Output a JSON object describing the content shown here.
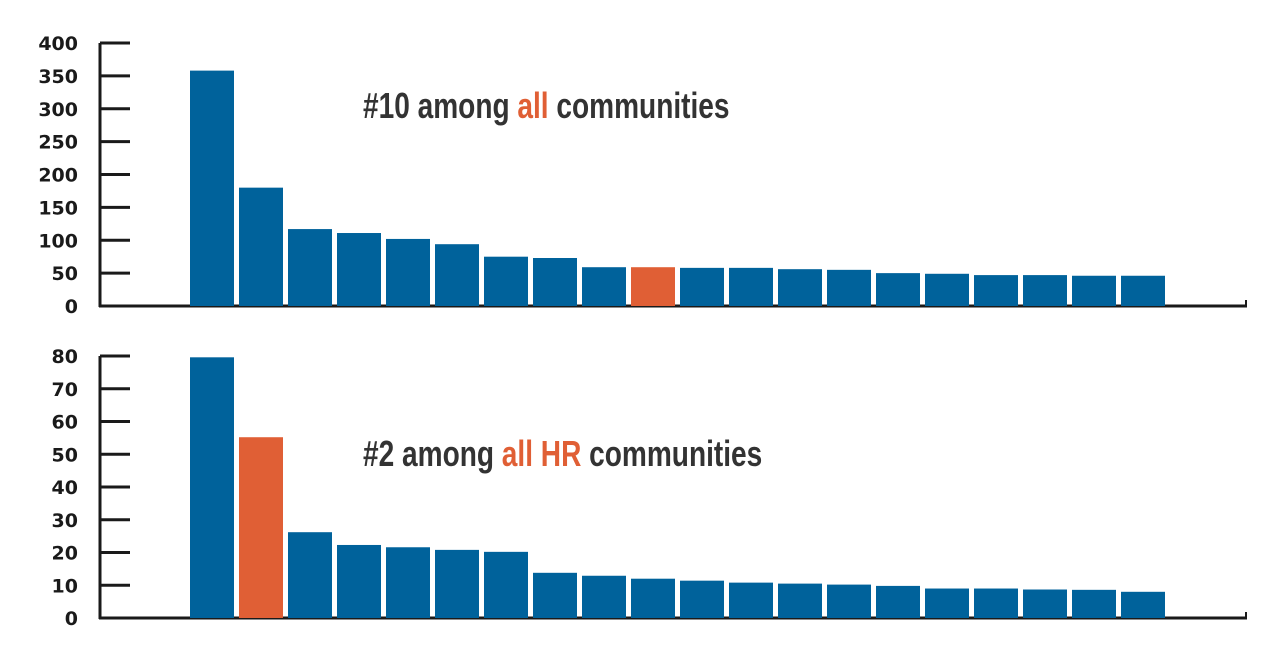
{
  "colors": {
    "default_bar": "#00629b",
    "highlight_bar": "#e05f35",
    "annotation_text": "#333333",
    "annotation_highlight": "#e05f35",
    "axis": "#1a1a1a"
  },
  "chart_data": [
    {
      "type": "bar",
      "ylim": [
        0,
        400
      ],
      "yticks": [
        "0",
        "50",
        "100",
        "150",
        "200",
        "250",
        "300",
        "350",
        "400"
      ],
      "values": [
        358,
        180,
        117,
        111,
        102,
        94,
        75,
        73,
        59,
        59,
        58,
        58,
        56,
        55,
        50,
        49,
        47,
        47,
        46,
        46
      ],
      "highlight_index": 9,
      "annotation": [
        {
          "text": "#10 among ",
          "highlight": false
        },
        {
          "text": "all",
          "highlight": true
        },
        {
          "text": " communities",
          "highlight": false
        }
      ]
    },
    {
      "type": "bar",
      "ylim": [
        0,
        80
      ],
      "yticks": [
        "0",
        "10",
        "20",
        "30",
        "40",
        "50",
        "60",
        "70",
        "80"
      ],
      "values": [
        79.6,
        55.2,
        26.2,
        22.3,
        21.6,
        20.8,
        20.2,
        13.8,
        12.9,
        12.0,
        11.4,
        10.8,
        10.5,
        10.2,
        9.8,
        9.0,
        9.0,
        8.7,
        8.6,
        8.0
      ],
      "highlight_index": 1,
      "annotation": [
        {
          "text": "#2 among ",
          "highlight": false
        },
        {
          "text": "all HR",
          "highlight": true
        },
        {
          "text": " communities",
          "highlight": false
        }
      ]
    }
  ]
}
